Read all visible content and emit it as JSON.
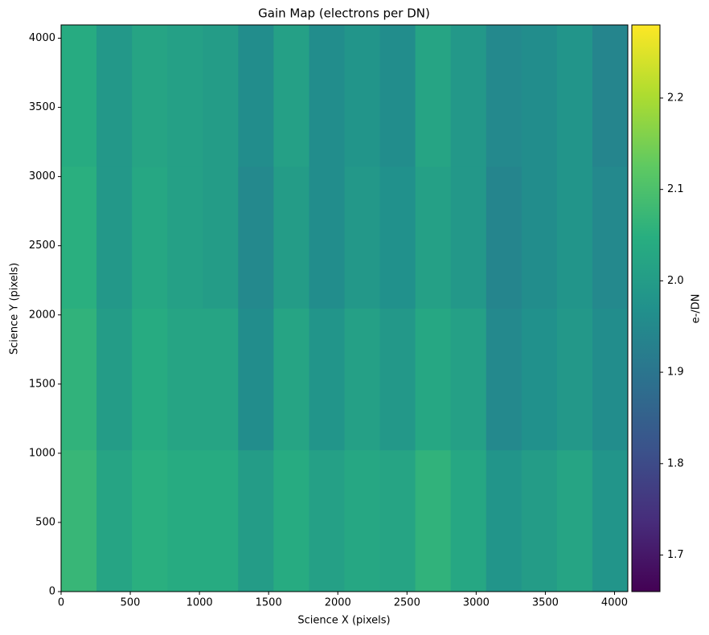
{
  "chart_data": {
    "type": "heatmap",
    "title": "Gain Map (electrons per DN)",
    "x_label": "Science X (pixels)",
    "y_label": "Science Y (pixels)",
    "colorbar_label": "e-/DN",
    "colormap": "viridis",
    "x_edges": [
      0,
      256,
      512,
      768,
      1024,
      1280,
      1536,
      1792,
      2048,
      2304,
      2560,
      2816,
      3072,
      3328,
      3584,
      3840,
      4096
    ],
    "y_edges": [
      0,
      1024,
      2048,
      3072,
      4096
    ],
    "values": [
      [
        2.07,
        2.02,
        2.05,
        2.04,
        2.04,
        2.0,
        2.04,
        2.01,
        2.03,
        2.02,
        2.06,
        2.03,
        1.98,
        2.0,
        2.02,
        1.98
      ],
      [
        2.06,
        2.0,
        2.04,
        2.02,
        2.02,
        1.96,
        2.02,
        1.98,
        2.01,
        1.99,
        2.03,
        2.01,
        1.95,
        1.97,
        1.99,
        1.96
      ],
      [
        2.05,
        1.99,
        2.03,
        2.01,
        2.0,
        1.95,
        2.0,
        1.96,
        1.99,
        1.97,
        2.01,
        1.99,
        1.94,
        1.96,
        1.98,
        1.95
      ],
      [
        2.04,
        1.99,
        2.02,
        2.01,
        2.0,
        1.96,
        2.01,
        1.96,
        1.98,
        1.96,
        2.02,
        1.99,
        1.95,
        1.96,
        1.98,
        1.94
      ]
    ],
    "xlim": [
      0,
      4096
    ],
    "ylim": [
      0,
      4096
    ],
    "xticks": [
      0,
      500,
      1000,
      1500,
      2000,
      2500,
      3000,
      3500,
      4000
    ],
    "yticks": [
      0,
      500,
      1000,
      1500,
      2000,
      2500,
      3000,
      3500,
      4000
    ],
    "clim": [
      1.66,
      2.28
    ],
    "cticks": [
      1.7,
      1.8,
      1.9,
      {
        "value": 2,
        "label": "2.0"
      },
      2.1,
      2.2
    ]
  }
}
